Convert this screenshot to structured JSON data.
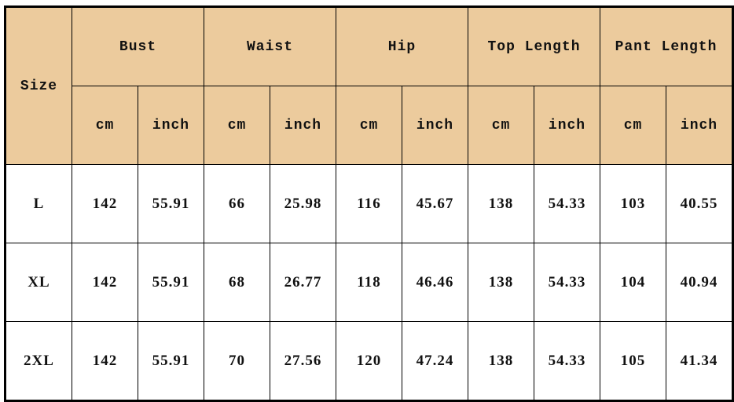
{
  "header": {
    "size_label": "Size",
    "groups": [
      "Bust",
      "Waist",
      "Hip",
      "Top Length",
      "Pant Length"
    ],
    "units": [
      "cm",
      "inch"
    ]
  },
  "colors": {
    "header_bg": "#ECCB9D"
  },
  "rows": [
    {
      "size": "L",
      "values": [
        "142",
        "55.91",
        "66",
        "25.98",
        "116",
        "45.67",
        "138",
        "54.33",
        "103",
        "40.55"
      ]
    },
    {
      "size": "XL",
      "values": [
        "142",
        "55.91",
        "68",
        "26.77",
        "118",
        "46.46",
        "138",
        "54.33",
        "104",
        "40.94"
      ]
    },
    {
      "size": "2XL",
      "values": [
        "142",
        "55.91",
        "70",
        "27.56",
        "120",
        "47.24",
        "138",
        "54.33",
        "105",
        "41.34"
      ]
    }
  ]
}
